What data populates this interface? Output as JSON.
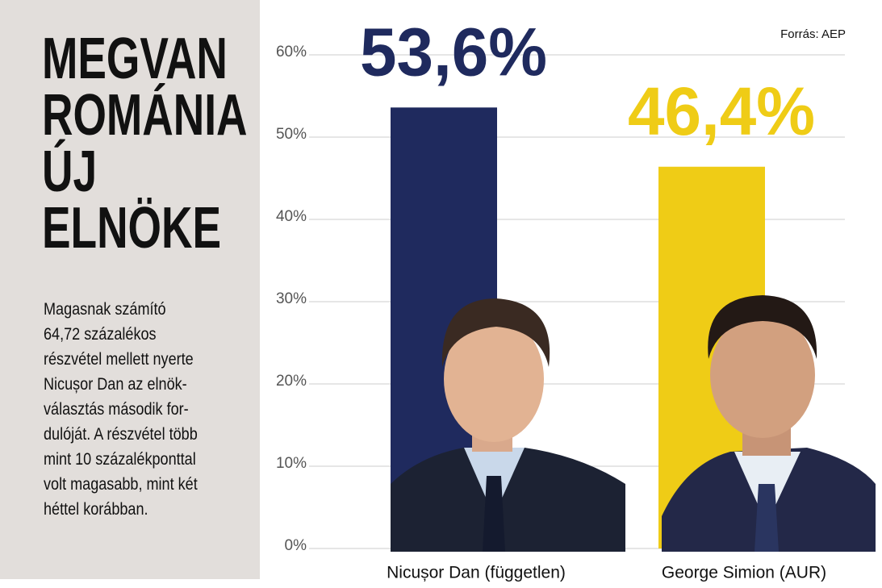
{
  "title_lines": [
    "MEGVAN",
    "ROMÁNIA",
    "ÚJ",
    "ELNÖKE"
  ],
  "lead_lines": [
    "Magasnak számító",
    "64,72 százalékos",
    "részvétel mellett nyerte",
    "Nicușor Dan az elnök-",
    "választás második for-",
    "dulóját. A részvétel több",
    "mint 10 százalékponttal",
    "volt magasabb, mint két",
    "héttel korábban."
  ],
  "chart_data": {
    "type": "bar",
    "source": "Forrás: AEP",
    "categories": [
      "Nicușor Dan (független)",
      "George Simion (AUR)"
    ],
    "values": [
      53.6,
      46.4
    ],
    "value_labels": [
      "53,6%",
      "46,4%"
    ],
    "colors": [
      "#1f2a5e",
      "#efcc16"
    ],
    "ylim": [
      0,
      60
    ],
    "yticks": [
      {
        "value": 0,
        "label": "0%"
      },
      {
        "value": 10,
        "label": "10%"
      },
      {
        "value": 20,
        "label": "20%"
      },
      {
        "value": 30,
        "label": "30%"
      },
      {
        "value": 40,
        "label": "40%"
      },
      {
        "value": 50,
        "label": "50%"
      },
      {
        "value": 60,
        "label": "60%"
      }
    ],
    "grid": true
  }
}
